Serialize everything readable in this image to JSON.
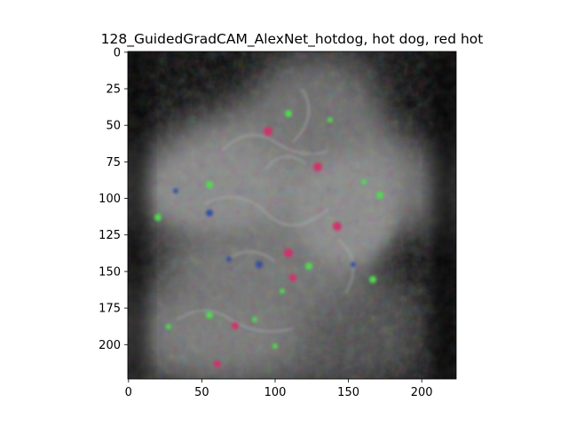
{
  "figure": {
    "title": "128_GuidedGradCAM_AlexNet_hotdog, hot dog, red hot",
    "image_description_icon": "guided-gradcam-heatmap-image",
    "x_axis": {
      "ticks": [
        0,
        50,
        100,
        150,
        200
      ],
      "labels": [
        "0",
        "50",
        "100",
        "150",
        "200"
      ],
      "range": [
        0,
        224
      ]
    },
    "y_axis": {
      "ticks": [
        0,
        25,
        50,
        75,
        100,
        125,
        150,
        175,
        200
      ],
      "labels": [
        "0",
        "25",
        "50",
        "75",
        "100",
        "125",
        "150",
        "175",
        "200"
      ],
      "range": [
        0,
        224
      ],
      "inverted": true
    },
    "colors": {
      "background_dark": "#0a0a0a",
      "glow_gray": "#9a9a9a",
      "speck_green": "#4fdc4f",
      "speck_magenta": "#d0306a",
      "speck_blue": "#3050a0"
    }
  }
}
